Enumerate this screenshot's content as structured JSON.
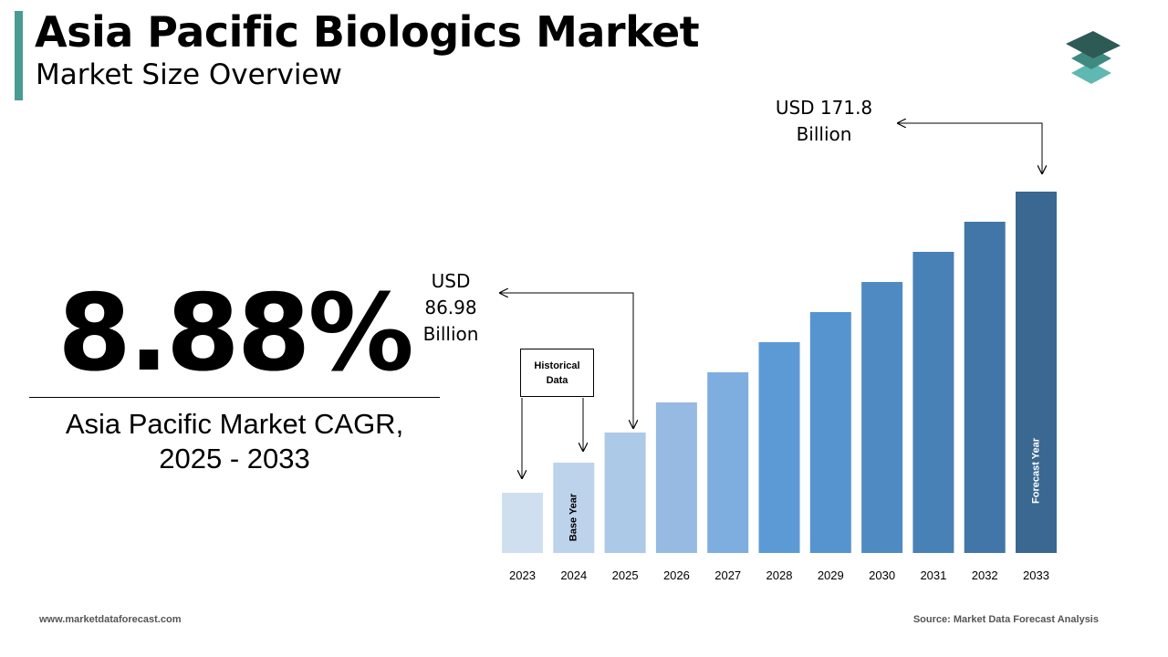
{
  "header": {
    "title": "Asia Pacific Biologics Market",
    "subtitle": "Market Size Overview"
  },
  "cagr": {
    "value": "8.88%",
    "label_line1": "Asia Pacific Market CAGR,",
    "label_line2": "2025 - 2033"
  },
  "callouts": {
    "high_line1": "USD 171.8",
    "high_line2": "Billion",
    "low_line1": "USD",
    "low_line2": "86.98",
    "low_line3": "Billion",
    "historical_line1": "Historical",
    "historical_line2": "Data"
  },
  "footer": {
    "website": "www.marketdataforecast.com",
    "source": "Source: Market Data Forecast Analysis"
  },
  "chart_data": {
    "type": "bar",
    "categories": [
      "2023",
      "2024",
      "2025",
      "2026",
      "2027",
      "2028",
      "2029",
      "2030",
      "2031",
      "2032",
      "2033"
    ],
    "values": [
      1,
      2,
      3,
      4,
      5,
      6,
      7,
      8,
      9,
      10,
      11
    ],
    "colors": [
      "#d0dff0",
      "#bdd2eb",
      "#adc9e8",
      "#97bae2",
      "#7eaee0",
      "#5c9ad6",
      "#5594cf",
      "#4f8bc2",
      "#4881b5",
      "#4276a8",
      "#3a6890"
    ],
    "bar_labels": [
      {
        "category": "2024",
        "text": "Base Year"
      },
      {
        "category": "2033",
        "text": "Forecast Year"
      }
    ],
    "grid": false
  }
}
